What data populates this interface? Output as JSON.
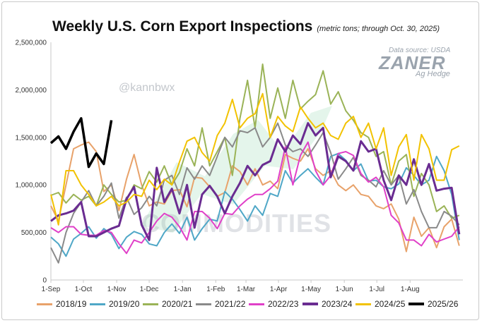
{
  "chart_data": {
    "type": "line",
    "title": "Weekly U.S. Corn Export Inspections",
    "subtitle": "(metric tons; through Oct. 30, 2025)",
    "xlabel": "",
    "ylabel": "",
    "ylim": [
      0,
      2500000
    ],
    "yticks": [
      0,
      500000,
      1000000,
      1500000,
      2000000,
      2500000
    ],
    "ytick_labels": [
      "0",
      "500,000",
      "1,000,000",
      "1,500,000",
      "2,000,000",
      "2,500,000"
    ],
    "xtick_labels": [
      "1-Sep",
      "1-Oct",
      "1-Nov",
      "1-Dec",
      "1-Jan",
      "1-Feb",
      "1-Mar",
      "1-Apr",
      "1-May",
      "1-Jun",
      "1-Jul",
      "1-Aug"
    ],
    "x_unit": "weeks since Sep 1 (Sep 1 = 0, Aug 1 = 47.5)",
    "grid": "none",
    "legend_position": "bottom",
    "series": [
      {
        "name": "2018/19",
        "color": "#E8A26A",
        "width": 2,
        "x_start": 0,
        "values": [
          780000,
          620000,
          1000000,
          1380000,
          1420000,
          1450000,
          1350000,
          930000,
          1000000,
          730000,
          1060000,
          1320000,
          1000000,
          780000,
          820000,
          800000,
          940000,
          950000,
          770000,
          1080000,
          1070000,
          980000,
          880000,
          920000,
          1200000,
          1140000,
          1000000,
          1170000,
          1000000,
          1040000,
          960000,
          1320000,
          1280000,
          1250000,
          1380000,
          1170000,
          1100000,
          1150000,
          1000000,
          940000,
          1000000,
          900000,
          880000,
          780000,
          750000,
          800000,
          640000,
          300000,
          660000,
          460000,
          550000,
          340000,
          560000,
          640000,
          360000
        ]
      },
      {
        "name": "2019/20",
        "color": "#4FA7C7",
        "width": 2,
        "x_start": 0,
        "values": [
          450000,
          380000,
          250000,
          430000,
          490000,
          560000,
          440000,
          540000,
          480000,
          330000,
          450000,
          510000,
          480000,
          380000,
          360000,
          500000,
          590000,
          490000,
          660000,
          420000,
          540000,
          640000,
          620000,
          930000,
          850000,
          740000,
          620000,
          780000,
          680000,
          910000,
          880000,
          1150000,
          1020000,
          1100000,
          1170000,
          1080000,
          1000000,
          1300000,
          1330000,
          1260000,
          1150000,
          1220000,
          1040000,
          1050000,
          980000,
          960000,
          1010000,
          1180000,
          1100000,
          1000000,
          1050000,
          1300000,
          1150000,
          900000,
          420000
        ]
      },
      {
        "name": "2020/21",
        "color": "#9AB357",
        "width": 2,
        "x_start": 0,
        "values": [
          890000,
          920000,
          810000,
          900000,
          840000,
          880000,
          780000,
          1000000,
          900000,
          820000,
          840000,
          1000000,
          960000,
          1140000,
          1030000,
          1200000,
          1000000,
          1130000,
          1380000,
          1200000,
          1600000,
          1200000,
          1350000,
          1500000,
          1100000,
          1700000,
          2100000,
          1600000,
          2270000,
          1700000,
          2020000,
          1700000,
          2100000,
          1800000,
          1880000,
          1950000,
          2200000,
          1850000,
          1980000,
          1780000,
          1680000,
          1550000,
          1500000,
          1300000,
          1350000,
          1000000,
          1250000,
          1320000,
          880000,
          1120000,
          1000000,
          720000,
          780000,
          650000,
          680000
        ]
      },
      {
        "name": "2021/22",
        "color": "#8A8A8A",
        "width": 2,
        "x_start": 0,
        "values": [
          340000,
          180000,
          500000,
          700000,
          820000,
          940000,
          780000,
          880000,
          1020000,
          650000,
          870000,
          690000,
          760000,
          880000,
          780000,
          1050000,
          1100000,
          900000,
          1180000,
          1060000,
          1200000,
          1100000,
          1300000,
          1500000,
          1400000,
          1570000,
          1550000,
          1600000,
          1400000,
          1500000,
          1650000,
          1420000,
          1350000,
          1380000,
          1300000,
          1420000,
          1550000,
          1340000,
          1060000,
          1170000,
          1290000,
          1100000,
          1050000,
          980000,
          1150000,
          1000000,
          1100000,
          800000,
          950000,
          720000,
          550000,
          550000,
          720000,
          670000,
          580000
        ]
      },
      {
        "name": "2022/23",
        "color": "#E040C8",
        "width": 2,
        "x_start": 0,
        "values": [
          550000,
          500000,
          560000,
          560000,
          480000,
          470000,
          470000,
          520000,
          500000,
          380000,
          280000,
          420000,
          390000,
          500000,
          620000,
          700000,
          660000,
          560000,
          420000,
          720000,
          720000,
          650000,
          540000,
          700000,
          690000,
          780000,
          850000,
          900000,
          900000,
          960000,
          1040000,
          1400000,
          1000000,
          1310000,
          1450000,
          1150000,
          1000000,
          1100000,
          1330000,
          1350000,
          1310000,
          1120000,
          1030000,
          1080000,
          980000,
          680000,
          600000,
          420000,
          420000,
          360000,
          480000,
          400000,
          430000,
          460000,
          560000
        ]
      },
      {
        "name": "2023/24",
        "color": "#6A2C91",
        "width": 3,
        "x_start": 0,
        "values": [
          620000,
          680000,
          700000,
          730000,
          820000,
          460000,
          460000,
          500000,
          540000,
          570000,
          850000,
          980000,
          580000,
          420000,
          1180000,
          820000,
          960000,
          700000,
          1000000,
          550000,
          900000,
          990000,
          880000,
          700000,
          880000,
          1020000,
          1200000,
          1100000,
          1210000,
          1250000,
          1480000,
          1350000,
          1520000,
          1430000,
          1650000,
          1520000,
          1600000,
          1080000,
          1300000,
          1250000,
          1150000,
          1460000,
          1350000,
          1380000,
          1050000,
          840000,
          1100000,
          1000000,
          1270000,
          1000000,
          1220000,
          940000,
          960000,
          970000,
          480000
        ]
      },
      {
        "name": "2024/25",
        "color": "#F2C200",
        "width": 2,
        "x_start": 0,
        "values": [
          900000,
          580000,
          1150000,
          1150000,
          1000000,
          900000,
          780000,
          820000,
          880000,
          780000,
          820000,
          900000,
          880000,
          1050000,
          950000,
          1060000,
          1000000,
          1240000,
          1460000,
          1500000,
          1340000,
          1250000,
          1520000,
          1650000,
          1900000,
          1600000,
          1700000,
          1750000,
          1960000,
          1500000,
          1720000,
          1620000,
          1560000,
          1820000,
          1700000,
          1600000,
          1650000,
          1520000,
          1480000,
          1650000,
          1720000,
          1500000,
          1650000,
          1380000,
          1600000,
          1100000,
          1400000,
          1530000,
          1050000,
          1530000,
          1380000,
          1050000,
          1050000,
          1370000,
          1410000
        ]
      },
      {
        "name": "2025/26",
        "color": "#000000",
        "width": 3.5,
        "x_start": 0,
        "values": [
          1440000,
          1510000,
          1380000,
          1560000,
          1700000,
          1190000,
          1330000,
          1220000,
          1680000
        ]
      }
    ]
  }
}
